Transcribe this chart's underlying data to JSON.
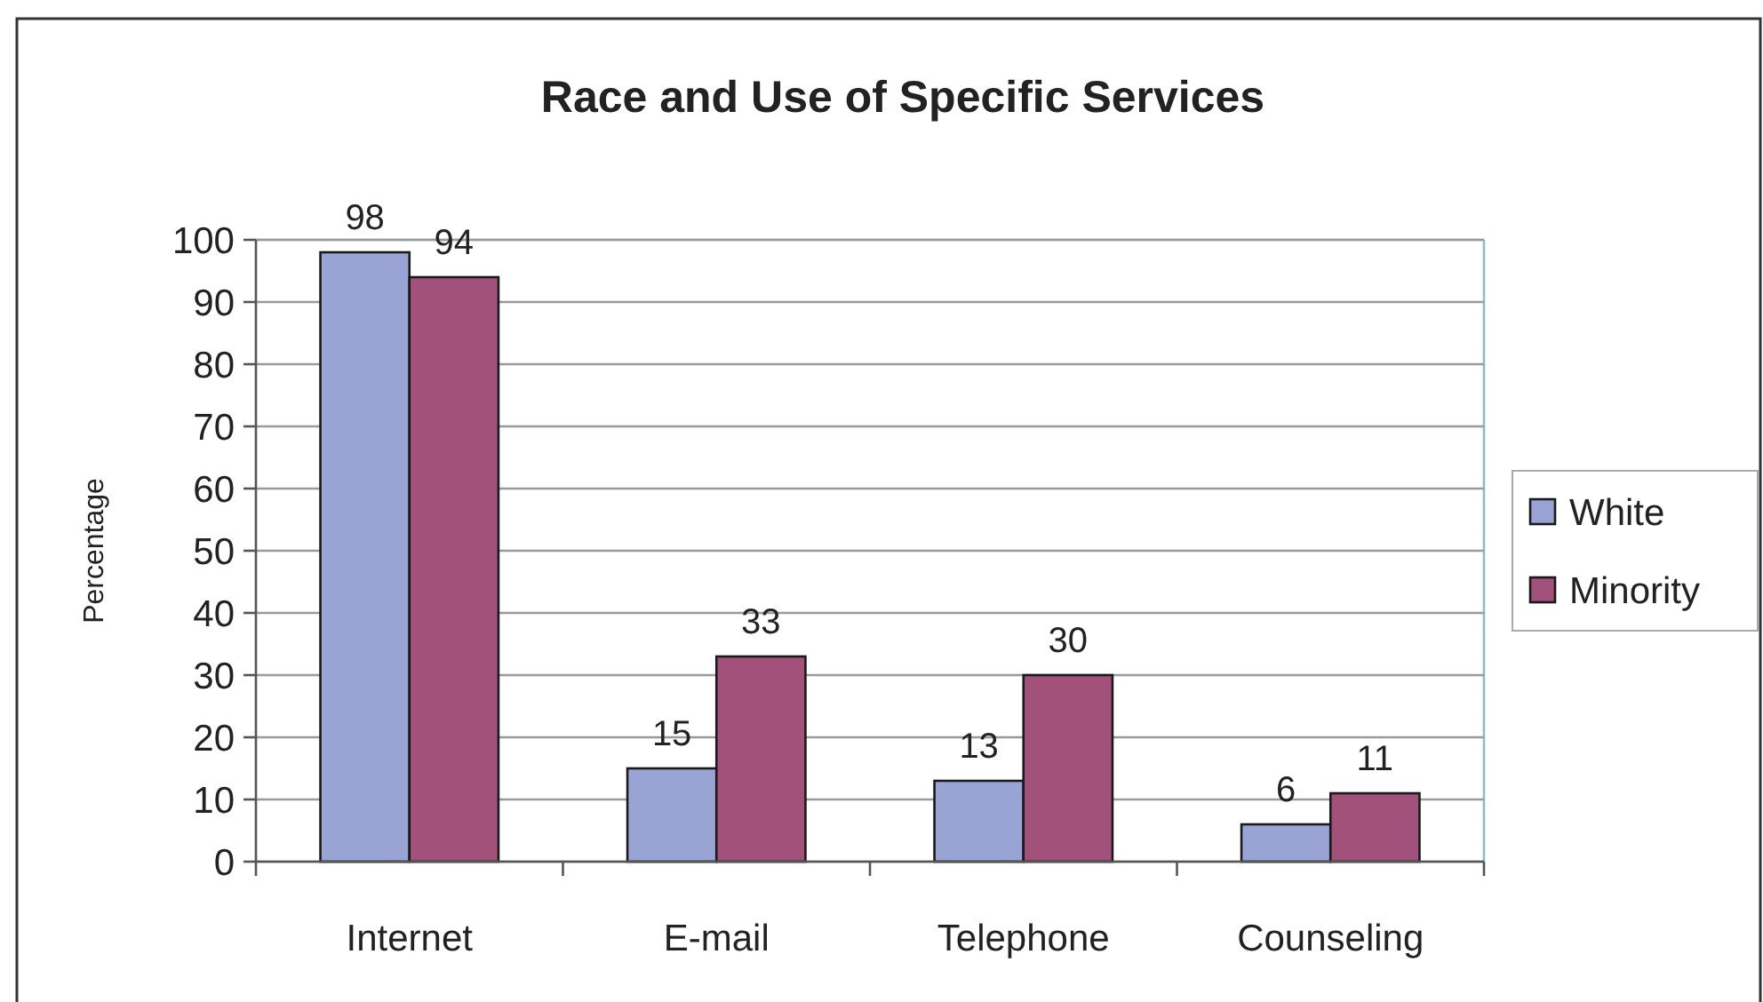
{
  "chart_data": {
    "type": "bar",
    "title": "Race and Use of Specific Services",
    "ylabel": "Percentage",
    "categories": [
      "Internet",
      "E-mail",
      "Telephone",
      "Counseling"
    ],
    "series": [
      {
        "name": "White",
        "color": "#9aa4d4",
        "values": [
          98,
          15,
          13,
          6
        ]
      },
      {
        "name": "Minority",
        "color": "#a2517a",
        "values": [
          94,
          33,
          30,
          11
        ]
      }
    ],
    "ylim": [
      0,
      100
    ],
    "yticks": [
      0,
      10,
      20,
      30,
      40,
      50,
      60,
      70,
      80,
      90,
      100
    ],
    "grid": "y",
    "legend": "right",
    "data_labels": true
  }
}
